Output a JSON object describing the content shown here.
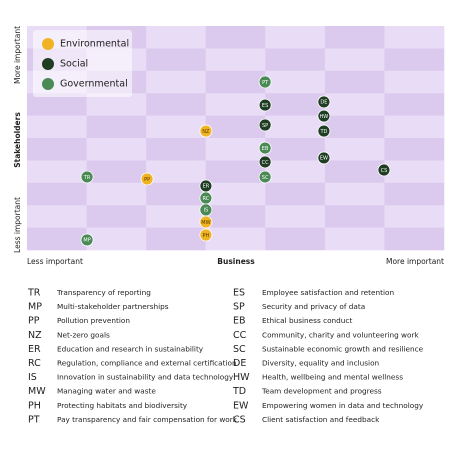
{
  "chart_data": {
    "type": "scatter",
    "xlabel": "Business",
    "x_low_label": "Less important",
    "x_high_label": "More important",
    "ylabel": "Stakeholders",
    "y_low_label": "Less important",
    "y_high_label": "More important",
    "xlim": [
      0,
      10
    ],
    "ylim": [
      0,
      10
    ],
    "series": [
      {
        "name": "Environmental",
        "color": "#f0b323",
        "labels": [
          "PP",
          "NZ",
          "MW",
          "PH"
        ],
        "x": [
          2.88,
          4.29,
          4.29,
          4.29
        ],
        "values": [
          3.17,
          5.31,
          1.25,
          0.67
        ]
      },
      {
        "name": "Social",
        "color": "#1e3d23",
        "labels": [
          "ER",
          "ES",
          "SP",
          "CC",
          "DE",
          "HW",
          "TD",
          "EW",
          "CS"
        ],
        "x": [
          4.29,
          5.71,
          5.71,
          5.71,
          7.12,
          7.12,
          7.12,
          7.12,
          8.56
        ],
        "values": [
          2.86,
          6.47,
          5.58,
          3.93,
          6.61,
          5.98,
          5.31,
          4.11,
          3.57
        ]
      },
      {
        "name": "Governmental",
        "color": "#4a8a55",
        "labels": [
          "TR",
          "MP",
          "RC",
          "IS",
          "PT",
          "EB",
          "SC"
        ],
        "x": [
          1.44,
          1.44,
          4.29,
          4.29,
          5.71,
          5.71,
          5.71
        ],
        "values": [
          3.26,
          0.45,
          2.32,
          1.79,
          7.5,
          4.55,
          3.26
        ]
      }
    ]
  },
  "glossary": [
    {
      "code": "TR",
      "text": "Transparency of reporting"
    },
    {
      "code": "MP",
      "text": "Multi-stakeholder partnerships"
    },
    {
      "code": "PP",
      "text": "Pollution prevention"
    },
    {
      "code": "NZ",
      "text": "Net-zero goals"
    },
    {
      "code": "ER",
      "text": "Education and research in sustainability"
    },
    {
      "code": "RC",
      "text": "Regulation, compliance and external certification"
    },
    {
      "code": "IS",
      "text": "Innovation in sustainability and data technology"
    },
    {
      "code": "MW",
      "text": "Managing water and waste"
    },
    {
      "code": "PH",
      "text": "Protecting habitats and biodiversity"
    },
    {
      "code": "PT",
      "text": "Pay transparency and fair compensation for work"
    },
    {
      "code": "ES",
      "text": "Employee satisfaction and retention"
    },
    {
      "code": "SP",
      "text": "Security and privacy of data"
    },
    {
      "code": "EB",
      "text": "Ethical business conduct"
    },
    {
      "code": "CC",
      "text": "Community, charity and volunteering work"
    },
    {
      "code": "SC",
      "text": "Sustainable economic growth and resilience"
    },
    {
      "code": "DE",
      "text": "Diversity, equality and inclusion"
    },
    {
      "code": "HW",
      "text": "Health, wellbeing and mental wellness"
    },
    {
      "code": "TD",
      "text": "Team development and progress"
    },
    {
      "code": "EW",
      "text": "Empowering women in data and technology"
    },
    {
      "code": "CS",
      "text": "Client satisfaction and feedback"
    }
  ]
}
